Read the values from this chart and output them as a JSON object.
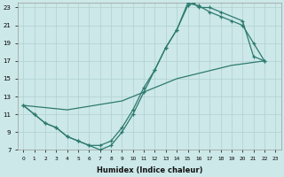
{
  "xlabel": "Humidex (Indice chaleur)",
  "ylabel": "",
  "bg_color": "#cce8e8",
  "grid_color": "#b0d0d0",
  "line_color": "#2d7a6e",
  "xlim": [
    -0.5,
    23.5
  ],
  "ylim": [
    7,
    23.5
  ],
  "xticks": [
    0,
    1,
    2,
    3,
    4,
    5,
    6,
    7,
    8,
    9,
    10,
    11,
    12,
    13,
    14,
    15,
    16,
    17,
    18,
    19,
    20,
    21,
    22,
    23
  ],
  "yticks": [
    7,
    9,
    11,
    13,
    15,
    17,
    19,
    21,
    23
  ],
  "line1_x": [
    0,
    1,
    2,
    3,
    4,
    5,
    6,
    7,
    8,
    9,
    10,
    11,
    12,
    13,
    14,
    15,
    16,
    17,
    18,
    19,
    20,
    21,
    22
  ],
  "line1_y": [
    12,
    11,
    10,
    9.5,
    8.5,
    8,
    7.5,
    7.5,
    8,
    9.5,
    11.5,
    14,
    16,
    18.5,
    20.5,
    23.5,
    23.2,
    22.5,
    22,
    21.5,
    21,
    19,
    17
  ],
  "line2_x": [
    0,
    1,
    2,
    3,
    4,
    5,
    6,
    7,
    8,
    9,
    10,
    11,
    12,
    13,
    14,
    15,
    15.5,
    16,
    17,
    18,
    20,
    21,
    22
  ],
  "line2_y": [
    12,
    11,
    10,
    9.5,
    8.5,
    8,
    7.5,
    7,
    7.5,
    9,
    11,
    13.5,
    16,
    18.5,
    20.5,
    23.2,
    23.5,
    23,
    23,
    22.5,
    21.5,
    17.5,
    17
  ],
  "line3_x": [
    0,
    4,
    9,
    14,
    19,
    22
  ],
  "line3_y": [
    12,
    11.5,
    12.5,
    15,
    16.5,
    17
  ]
}
